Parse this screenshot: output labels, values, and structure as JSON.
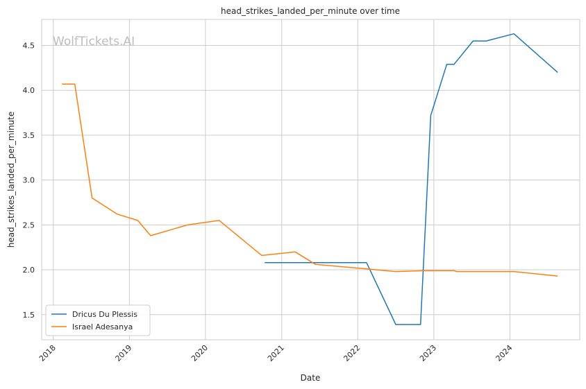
{
  "chart_data": {
    "type": "line",
    "title": "head_strikes_landed_per_minute over time",
    "xlabel": "Date",
    "ylabel": "head_strikes_landed_per_minute",
    "watermark": "WolfTickets.AI",
    "x_axis_type": "date",
    "xlim": [
      "2017-11-06",
      "2024-12-01"
    ],
    "ylim": [
      1.22,
      4.79
    ],
    "x_ticks": [
      "2018",
      "2019",
      "2020",
      "2021",
      "2022",
      "2023",
      "2024"
    ],
    "y_ticks": [
      "1.5",
      "2.0",
      "2.5",
      "3.0",
      "3.5",
      "4.0",
      "4.5"
    ],
    "grid": true,
    "legend_position": "lower-left",
    "series": [
      {
        "name": "Dricus Du Plessis",
        "color": "#1f77b4",
        "points": [
          {
            "x": "2020-10-11",
            "y": 2.08
          },
          {
            "x": "2021-07-17",
            "y": 2.08
          },
          {
            "x": "2022-02-12",
            "y": 2.08
          },
          {
            "x": "2022-07-02",
            "y": 1.39
          },
          {
            "x": "2022-10-29",
            "y": 1.39
          },
          {
            "x": "2022-12-17",
            "y": 3.72
          },
          {
            "x": "2023-03-04",
            "y": 4.29
          },
          {
            "x": "2023-04-08",
            "y": 4.29
          },
          {
            "x": "2023-07-08",
            "y": 4.55
          },
          {
            "x": "2023-09-09",
            "y": 4.55
          },
          {
            "x": "2024-01-20",
            "y": 4.63
          },
          {
            "x": "2024-08-17",
            "y": 4.2
          }
        ]
      },
      {
        "name": "Israel Adesanya",
        "color": "#ff7f0e",
        "points": [
          {
            "x": "2018-02-11",
            "y": 4.07
          },
          {
            "x": "2018-04-14",
            "y": 4.07
          },
          {
            "x": "2018-07-06",
            "y": 2.8
          },
          {
            "x": "2018-11-03",
            "y": 2.62
          },
          {
            "x": "2019-02-10",
            "y": 2.55
          },
          {
            "x": "2019-04-13",
            "y": 2.38
          },
          {
            "x": "2019-10-06",
            "y": 2.5
          },
          {
            "x": "2020-03-07",
            "y": 2.55
          },
          {
            "x": "2020-09-27",
            "y": 2.16
          },
          {
            "x": "2021-03-06",
            "y": 2.2
          },
          {
            "x": "2021-06-12",
            "y": 2.06
          },
          {
            "x": "2022-02-12",
            "y": 2.01
          },
          {
            "x": "2022-07-02",
            "y": 1.98
          },
          {
            "x": "2022-11-12",
            "y": 1.99
          },
          {
            "x": "2023-04-08",
            "y": 1.99
          },
          {
            "x": "2023-04-22",
            "y": 1.98
          },
          {
            "x": "2024-01-20",
            "y": 1.98
          },
          {
            "x": "2024-08-17",
            "y": 1.93
          }
        ]
      }
    ]
  }
}
